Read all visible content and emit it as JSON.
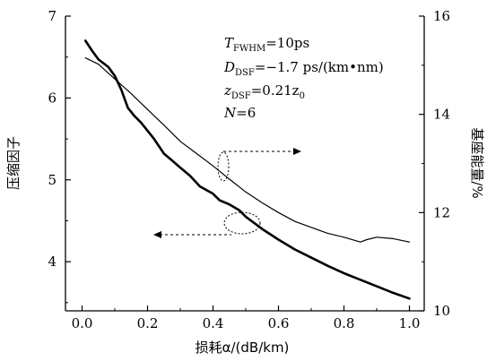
{
  "chart_data": {
    "type": "line",
    "xlabel": "损耗α/(dB/km)",
    "ylabel_left": "压缩因子",
    "ylabel_right": "基座能量/%",
    "xlim": [
      0,
      1.0
    ],
    "ylim_left": [
      3.4,
      7
    ],
    "ylim_right": [
      10,
      16
    ],
    "x_ticks": [
      "0.0",
      "0.2",
      "0.4",
      "0.6",
      "0.8",
      "1.0"
    ],
    "y_left_ticks": [
      "4",
      "5",
      "6",
      "7"
    ],
    "y_right_ticks": [
      "10",
      "12",
      "14",
      "16"
    ],
    "grid": false,
    "series": [
      {
        "axis": "left",
        "x": [
          0.01,
          0.03,
          0.05,
          0.08,
          0.1,
          0.12,
          0.14,
          0.16,
          0.18,
          0.2,
          0.22,
          0.25,
          0.28,
          0.3,
          0.33,
          0.36,
          0.4,
          0.42,
          0.45,
          0.48,
          0.5,
          0.55,
          0.6,
          0.65,
          0.7,
          0.75,
          0.8,
          0.85,
          0.9,
          0.95,
          1.0
        ],
        "y": [
          6.7,
          6.58,
          6.47,
          6.38,
          6.27,
          6.1,
          5.88,
          5.78,
          5.7,
          5.6,
          5.5,
          5.32,
          5.22,
          5.15,
          5.05,
          4.92,
          4.83,
          4.75,
          4.7,
          4.63,
          4.55,
          4.4,
          4.27,
          4.15,
          4.05,
          3.95,
          3.86,
          3.78,
          3.7,
          3.62,
          3.55
        ]
      },
      {
        "axis": "right",
        "x": [
          0.01,
          0.05,
          0.1,
          0.15,
          0.2,
          0.25,
          0.3,
          0.35,
          0.4,
          0.45,
          0.5,
          0.55,
          0.6,
          0.65,
          0.7,
          0.75,
          0.8,
          0.85,
          0.87,
          0.9,
          0.95,
          1.0
        ],
        "y": [
          15.15,
          15.02,
          14.72,
          14.42,
          14.1,
          13.78,
          13.45,
          13.2,
          12.95,
          12.68,
          12.42,
          12.2,
          12.0,
          11.82,
          11.7,
          11.58,
          11.5,
          11.4,
          11.45,
          11.5,
          11.47,
          11.4
        ]
      }
    ],
    "annotations": [
      {
        "main": "T",
        "sub": "FWHM",
        "rest": "=10ps"
      },
      {
        "main": "D",
        "sub": "DSF",
        "rest": "=−1.7 ps/(km•nm)"
      },
      {
        "main": "z",
        "sub": "DSF",
        "rest": "=0.21z",
        "sub2": "0"
      },
      {
        "main": "N",
        "sub": "",
        "rest": "=6"
      }
    ]
  }
}
